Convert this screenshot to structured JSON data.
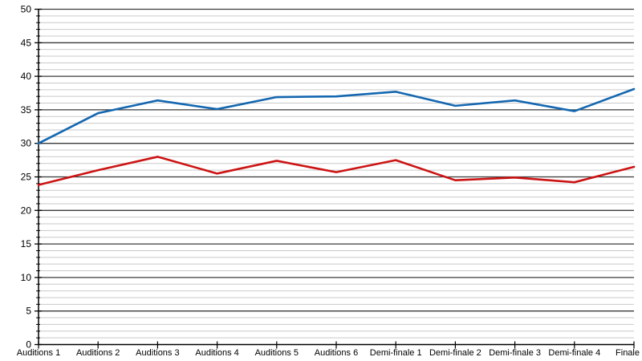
{
  "chart_data": {
    "type": "line",
    "title": "",
    "xlabel": "",
    "ylabel": "",
    "categories": [
      "Auditions 1",
      "Auditions 2",
      "Auditions 3",
      "Auditions 4",
      "Auditions 5",
      "Auditions 6",
      "Demi-finale 1",
      "Demi-finale 2",
      "Demi-finale 3",
      "Demi-finale 4",
      "Finale"
    ],
    "series": [
      {
        "id": "blue-series",
        "color": "#1467b0",
        "values": [
          30.0,
          34.5,
          36.4,
          35.1,
          36.9,
          37.0,
          37.7,
          35.6,
          36.4,
          34.8,
          38.1
        ]
      },
      {
        "id": "red-series",
        "color": "#cc1414",
        "values": [
          23.8,
          26.0,
          28.0,
          25.5,
          27.4,
          25.7,
          27.5,
          24.5,
          24.9,
          24.2,
          26.5
        ]
      }
    ],
    "ylim": [
      0,
      50
    ],
    "y_major_step": 5,
    "y_minor_step": 1,
    "y_tick_labels": [
      "0",
      "5",
      "10",
      "15",
      "20",
      "25",
      "30",
      "35",
      "40",
      "45",
      "50"
    ],
    "grid": "horizontal-only",
    "legend": "none",
    "colors": {
      "background": "#ffffff",
      "axis": "#000000",
      "major_grid": "#3a3a3a",
      "minor_grid": "#c9c9c9",
      "label": "#000000"
    }
  }
}
